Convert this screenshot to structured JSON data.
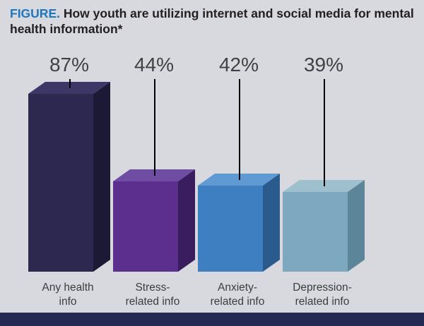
{
  "title": {
    "figure_label": "FIGURE.",
    "text": "How youth are utilizing internet and social media for mental health information*"
  },
  "chart_data": {
    "type": "bar",
    "title": "How youth are utilizing internet and social media for mental health information*",
    "categories": [
      [
        "Any health",
        "info"
      ],
      [
        "Stress-",
        "related info"
      ],
      [
        "Anxiety-",
        "related info"
      ],
      [
        "Depression-",
        "related info"
      ]
    ],
    "values": [
      87,
      44,
      42,
      39
    ],
    "value_labels": [
      "87%",
      "44%",
      "42%",
      "39%"
    ],
    "ylim": [
      0,
      100
    ],
    "grid": false,
    "legend": false,
    "bar_colors": [
      {
        "front": "#2c284f",
        "side": "#1c1936",
        "top": "#3c3766"
      },
      {
        "front": "#5c2f8f",
        "side": "#3a1d5e",
        "top": "#6f4da3"
      },
      {
        "front": "#3e7fc2",
        "side": "#2b5a8c",
        "top": "#5f9ad2"
      },
      {
        "front": "#7ea8bf",
        "side": "#5d8599",
        "top": "#9dbfce"
      }
    ],
    "value_label_color": "#414042",
    "category_label_color": "#3d3d3f",
    "leader_line_color": "#000000",
    "background_color": "#d8d9de",
    "footer_strip_color": "#252a52",
    "figure_label_color": "#1e76bc"
  }
}
